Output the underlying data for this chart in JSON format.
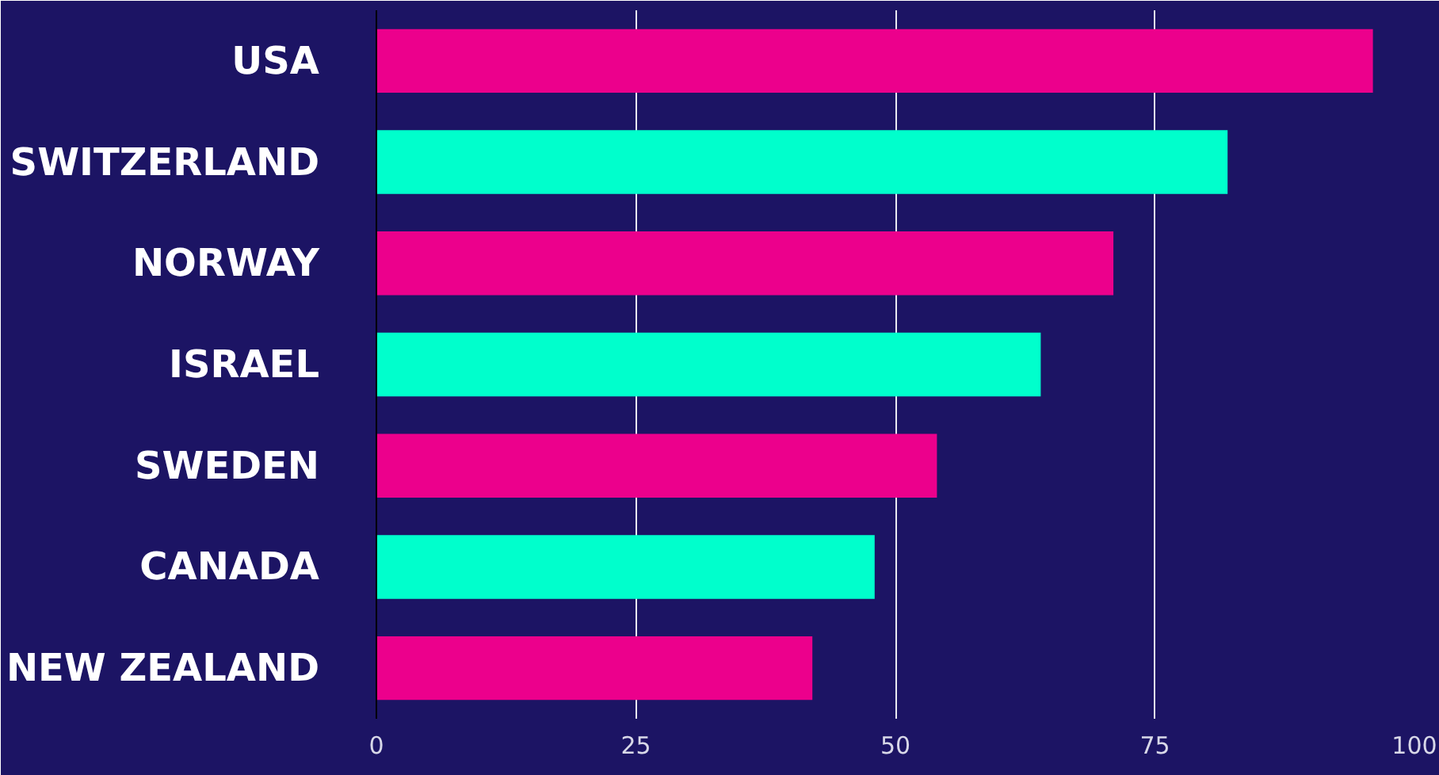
{
  "chart_data": {
    "type": "bar",
    "orientation": "horizontal",
    "categories": [
      "USA",
      "SWITZERLAND",
      "NORWAY",
      "ISRAEL",
      "SWEDEN",
      "CANADA",
      "NEW ZEALAND"
    ],
    "values": [
      96,
      82,
      71,
      64,
      54,
      48,
      42
    ],
    "colors": [
      "#ec008c",
      "#00ffcc",
      "#ec008c",
      "#00ffcc",
      "#ec008c",
      "#00ffcc",
      "#ec008c"
    ],
    "xlim": [
      0,
      100
    ],
    "xticks": [
      0,
      25,
      50,
      75,
      100
    ],
    "grid": "x"
  }
}
